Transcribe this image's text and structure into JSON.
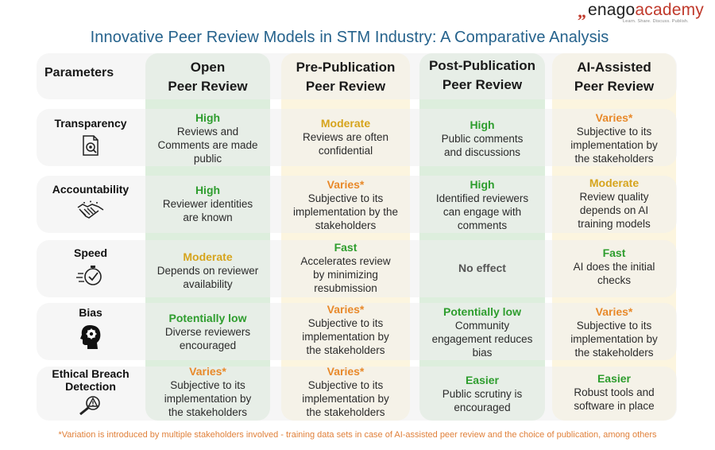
{
  "logo": {
    "mark": "„",
    "enago": "enago",
    "academy": "academy",
    "tagline": "Learn. Share. Discuss. Publish."
  },
  "title": "Innovative Peer Review Models in STM Industry:  A Comparative Analysis",
  "table": {
    "param_header": "Parameters",
    "columns": [
      {
        "line1": "Open",
        "line2": "Peer Review"
      },
      {
        "line1": "Pre-Publication",
        "line2": "Peer Review"
      },
      {
        "line1": "Post-Publication",
        "line2": "Peer Review"
      },
      {
        "line1": "AI-Assisted",
        "line2": "Peer Review"
      }
    ],
    "rows": [
      {
        "param": "Transparency",
        "icon": "document-search-icon",
        "cells": [
          {
            "level": "High",
            "desc": "Reviews and\nComments are made\npublic"
          },
          {
            "level": "Moderate",
            "desc": "Reviews are often\nconfidential"
          },
          {
            "level": "High",
            "desc": "Public comments\nand discussions"
          },
          {
            "level": "Varies*",
            "desc": "Subjective to its\nimplementation by\nthe stakeholders"
          }
        ]
      },
      {
        "param": "Accountability",
        "icon": "handshake-icon",
        "cells": [
          {
            "level": "High",
            "desc": "Reviewer identities\nare known"
          },
          {
            "level": "Varies*",
            "desc": "Subjective to its\nimplementation by the\nstakeholders"
          },
          {
            "level": "High",
            "desc": "Identified reviewers\ncan engage with\ncomments"
          },
          {
            "level": "Moderate",
            "desc": "Review quality\ndepends on AI\ntraining models"
          }
        ]
      },
      {
        "param": "Speed",
        "icon": "stopwatch-icon",
        "cells": [
          {
            "level": "Moderate",
            "desc": "Depends on reviewer\navailability"
          },
          {
            "level": "Fast",
            "desc": "Accelerates review\nby minimizing\nresubmission"
          },
          {
            "level": "No effect",
            "desc": ""
          },
          {
            "level": "Fast",
            "desc": "AI does the initial\nchecks"
          }
        ]
      },
      {
        "param": "Bias",
        "icon": "head-gear-icon",
        "cells": [
          {
            "level": "Potentially low",
            "desc": "Diverse reviewers\nencouraged"
          },
          {
            "level": "Varies*",
            "desc": "Subjective to its\nimplementation by\nthe stakeholders"
          },
          {
            "level": "Potentially low",
            "desc": "Community\nengagement reduces\nbias"
          },
          {
            "level": "Varies*",
            "desc": "Subjective to its\nimplementation by\nthe stakeholders"
          }
        ]
      },
      {
        "param": "Ethical Breach\nDetection",
        "icon": "warning-magnifier-icon",
        "cells": [
          {
            "level": "Varies*",
            "desc": "Subjective to its\nimplementation by\nthe stakeholders"
          },
          {
            "level": "Varies*",
            "desc": "Subjective to its\nimplementation by\nthe stakeholders"
          },
          {
            "level": "Easier",
            "desc": "Public scrutiny is\nencouraged"
          },
          {
            "level": "Easier",
            "desc": "Robust tools and\nsoftware in place"
          }
        ]
      }
    ]
  },
  "colors": {
    "high": "#2e9d2e",
    "varies": "#e8892a",
    "moderate": "#d6a41d",
    "title": "#25628c",
    "brand": "#c0392b"
  },
  "footnote": "*Variation is introduced by multiple stakeholders involved - training data sets in case of AI-assisted peer review and the choice of publication, among others"
}
